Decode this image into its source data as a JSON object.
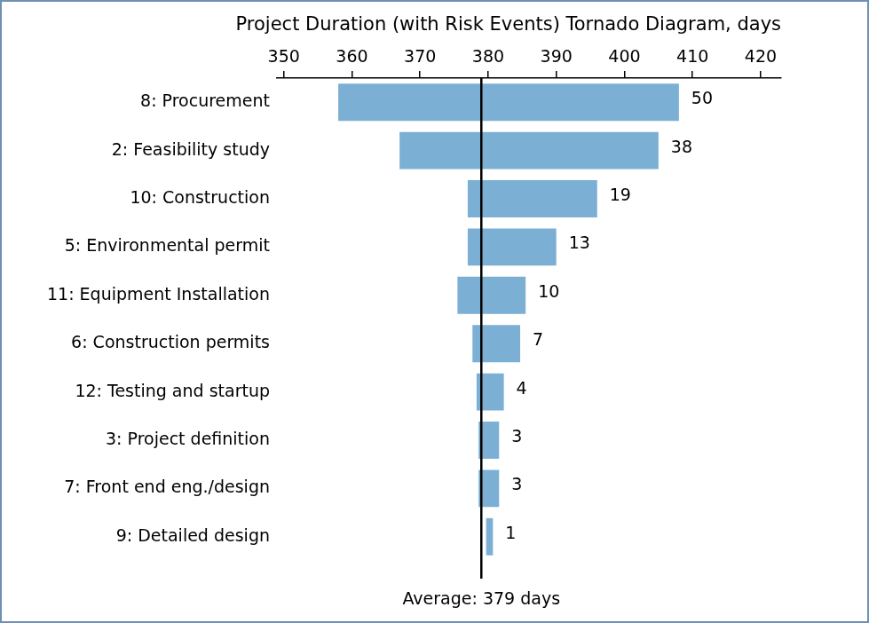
{
  "chart_data": {
    "type": "bar",
    "title": "Project Duration (with Risk Events) Tornado Diagram, days",
    "orientation": "horizontal",
    "categories": [
      "8: Procurement",
      "2: Feasibility study",
      "10: Construction",
      "5: Environmental permit",
      "11: Equipment Installation",
      "6: Construction permits",
      "12: Testing and startup",
      "3: Project definition",
      "7: Front end eng./design",
      "9: Detailed design"
    ],
    "values": [
      [
        358,
        408
      ],
      [
        367,
        405
      ],
      [
        377,
        396
      ],
      [
        377,
        390
      ],
      [
        375.5,
        385.5
      ],
      [
        377.7,
        384.7
      ],
      [
        378.3,
        382.3
      ],
      [
        378.6,
        381.6
      ],
      [
        378.6,
        381.6
      ],
      [
        379.7,
        380.7
      ]
    ],
    "value_labels": [
      "50",
      "38",
      "19",
      "13",
      "10",
      "7",
      "4",
      "3",
      "3",
      "1"
    ],
    "data_labels": true,
    "color": "#7bafd4",
    "xlim": [
      349,
      423
    ],
    "xticks": [
      350,
      360,
      370,
      380,
      390,
      400,
      410,
      420
    ],
    "grid": false,
    "average": 379,
    "annotations": [
      "Average: 379 days"
    ]
  }
}
